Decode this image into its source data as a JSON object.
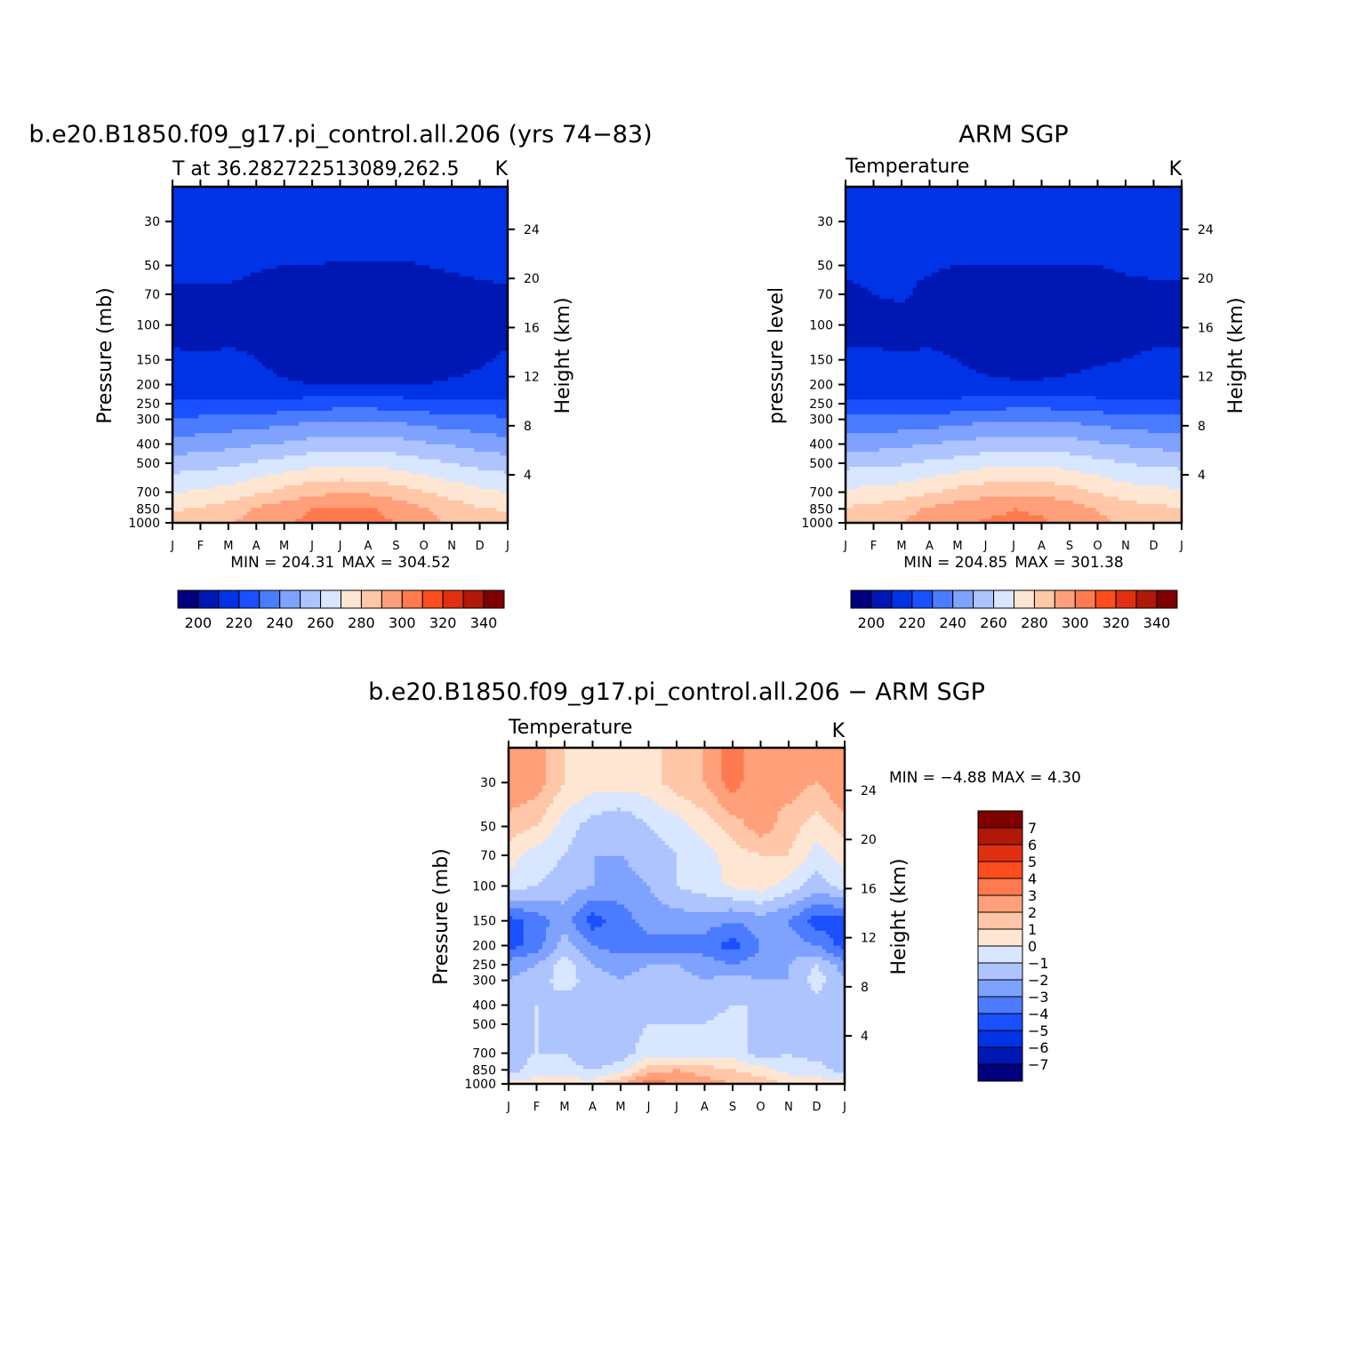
{
  "chart_data": [
    {
      "type": "heatmap",
      "title": "b.e20.B1850.f09_g17.pi_control.all.206 (yrs 74-83)",
      "subtitle_left": "T at 36.282722513089,262.5",
      "units": "K",
      "ylabel": "Pressure (mb)",
      "ylabel_right": "Height (km)",
      "x_ticklabels": [
        "J",
        "F",
        "M",
        "A",
        "M",
        "J",
        "J",
        "A",
        "S",
        "O",
        "N",
        "D",
        "J"
      ],
      "y_levels": [
        30,
        50,
        70,
        100,
        150,
        200,
        250,
        300,
        400,
        500,
        700,
        850,
        1000
      ],
      "height_ticks": [
        4,
        8,
        12,
        16,
        20,
        24
      ],
      "ylim": [
        1000,
        20
      ],
      "min_label": "MIN = 204.31",
      "max_label": "MAX = 304.52",
      "colorbar_ticks": [
        "200",
        "220",
        "240",
        "260",
        "280",
        "300",
        "320",
        "340"
      ],
      "values": [
        [
          214,
          215,
          216,
          217,
          218,
          219,
          220,
          219,
          218,
          217,
          216,
          215,
          214
        ],
        [
          212,
          212,
          212,
          211,
          210,
          210,
          209,
          209,
          209,
          210,
          211,
          212,
          212
        ],
        [
          209,
          209,
          209,
          207,
          206,
          205,
          205,
          205,
          205,
          206,
          207,
          208,
          209
        ],
        [
          208,
          207,
          208,
          209,
          207,
          206,
          206,
          206,
          205,
          205,
          206,
          207,
          208
        ],
        [
          211,
          211,
          211,
          210,
          207,
          206,
          206,
          206,
          206,
          206,
          207,
          209,
          211
        ],
        [
          214,
          214,
          214,
          213,
          211,
          210,
          210,
          210,
          210,
          210,
          211,
          212,
          214
        ],
        [
          222,
          222,
          222,
          222,
          223,
          225,
          226,
          226,
          225,
          223,
          222,
          222,
          222
        ],
        [
          231,
          232,
          233,
          234,
          236,
          238,
          239,
          239,
          238,
          236,
          234,
          233,
          231
        ],
        [
          244,
          245,
          247,
          249,
          251,
          254,
          255,
          255,
          254,
          251,
          249,
          246,
          244
        ],
        [
          255,
          256,
          258,
          261,
          264,
          267,
          268,
          268,
          266,
          263,
          260,
          257,
          255
        ],
        [
          270,
          271,
          274,
          278,
          283,
          287,
          289,
          288,
          285,
          280,
          276,
          272,
          270
        ],
        [
          279,
          281,
          285,
          291,
          296,
          300,
          302,
          301,
          297,
          291,
          285,
          281,
          279
        ],
        [
          283,
          285,
          289,
          294,
          299,
          302,
          304,
          303,
          300,
          294,
          288,
          284,
          283
        ]
      ]
    },
    {
      "type": "heatmap",
      "title": "ARM SGP",
      "subtitle_left": "Temperature",
      "units": "K",
      "ylabel": "pressure level",
      "ylabel_right": "Height (km)",
      "x_ticklabels": [
        "J",
        "F",
        "M",
        "A",
        "M",
        "J",
        "J",
        "A",
        "S",
        "O",
        "N",
        "D",
        "J"
      ],
      "y_levels": [
        30,
        50,
        70,
        100,
        150,
        200,
        250,
        300,
        400,
        500,
        700,
        850,
        1000
      ],
      "height_ticks": [
        4,
        8,
        12,
        16,
        20,
        24
      ],
      "ylim": [
        1000,
        20
      ],
      "min_label": "MIN = 204.85",
      "max_label": "MAX = 301.38",
      "colorbar_ticks": [
        "200",
        "220",
        "240",
        "260",
        "280",
        "300",
        "320",
        "340"
      ],
      "values": [
        [
          213,
          213,
          214,
          215,
          217,
          218,
          220,
          218,
          217,
          215,
          214,
          213,
          213
        ],
        [
          211,
          211,
          211,
          211,
          210,
          210,
          210,
          210,
          210,
          210,
          211,
          211,
          211
        ],
        [
          209,
          210,
          211,
          208,
          206,
          205,
          205,
          205,
          205,
          206,
          208,
          209,
          209
        ],
        [
          208,
          208,
          207,
          208,
          208,
          206,
          205,
          205,
          206,
          207,
          208,
          208,
          208
        ],
        [
          211,
          211,
          211,
          211,
          210,
          207,
          206,
          206,
          207,
          209,
          210,
          211,
          211
        ],
        [
          214,
          214,
          214,
          214,
          213,
          212,
          211,
          211,
          212,
          213,
          214,
          214,
          214
        ],
        [
          222,
          222,
          222,
          222,
          223,
          225,
          226,
          226,
          225,
          223,
          222,
          222,
          222
        ],
        [
          232,
          232,
          233,
          234,
          236,
          238,
          239,
          239,
          238,
          236,
          234,
          233,
          232
        ],
        [
          246,
          246,
          248,
          250,
          252,
          254,
          255,
          255,
          254,
          251,
          249,
          247,
          246
        ],
        [
          257,
          258,
          259,
          262,
          264,
          267,
          268,
          268,
          266,
          263,
          260,
          258,
          257
        ],
        [
          272,
          273,
          275,
          279,
          283,
          286,
          288,
          287,
          284,
          279,
          275,
          273,
          272
        ],
        [
          281,
          283,
          287,
          291,
          295,
          298,
          300,
          299,
          295,
          289,
          285,
          282,
          281
        ],
        [
          285,
          287,
          290,
          294,
          298,
          301,
          301,
          301,
          298,
          293,
          288,
          286,
          285
        ]
      ]
    },
    {
      "type": "heatmap",
      "title": "b.e20.B1850.f09_g17.pi_control.all.206 - ARM SGP",
      "subtitle_left": "Temperature",
      "units": "K",
      "ylabel": "Pressure (mb)",
      "ylabel_right": "Height (km)",
      "x_ticklabels": [
        "J",
        "F",
        "M",
        "A",
        "M",
        "J",
        "J",
        "A",
        "S",
        "O",
        "N",
        "D",
        "J"
      ],
      "y_levels": [
        30,
        50,
        70,
        100,
        150,
        200,
        250,
        300,
        400,
        500,
        700,
        850,
        1000
      ],
      "height_ticks": [
        4,
        8,
        12,
        16,
        20,
        24
      ],
      "ylim": [
        1000,
        20
      ],
      "min_label": "MIN =   -4.88 MAX =     4.30",
      "colorbar_ticks": [
        "7",
        "6",
        "5",
        "4",
        "3",
        "2",
        "1",
        "0",
        "-1",
        "-2",
        "-3",
        "-4",
        "-5",
        "-6",
        "-7"
      ],
      "values": [
        [
          3.0,
          2.5,
          1.0,
          0.5,
          0.5,
          0.5,
          1.5,
          2.0,
          3.5,
          2.0,
          2.5,
          2.0,
          3.0
        ],
        [
          1.5,
          1.0,
          -0.5,
          -1.5,
          -2.0,
          -1.0,
          -0.5,
          0.5,
          1.5,
          2.5,
          1.5,
          0.5,
          1.5
        ],
        [
          0.5,
          -0.5,
          -1.0,
          -2.0,
          -2.0,
          -1.5,
          -1.0,
          -0.5,
          0.5,
          1.0,
          1.0,
          -0.5,
          0.5
        ],
        [
          -0.5,
          -1.0,
          -1.5,
          -2.0,
          -2.5,
          -2.0,
          -1.0,
          -0.5,
          0.2,
          0.5,
          -0.5,
          -1.5,
          -0.5
        ],
        [
          -4.5,
          -3.5,
          -2.5,
          -4.5,
          -3.5,
          -2.5,
          -2.5,
          -2.5,
          -3.0,
          -2.5,
          -3.0,
          -4.5,
          -4.5
        ],
        [
          -4.5,
          -3.5,
          -1.5,
          -3.0,
          -3.5,
          -3.5,
          -3.5,
          -3.5,
          -4.5,
          -3.0,
          -2.5,
          -3.0,
          -4.5
        ],
        [
          -2.5,
          -2.0,
          -0.5,
          -2.0,
          -2.5,
          -2.0,
          -2.0,
          -2.5,
          -3.0,
          -2.5,
          -2.0,
          -1.0,
          -2.5
        ],
        [
          -2.0,
          -1.5,
          -0.5,
          -1.5,
          -2.0,
          -1.5,
          -1.5,
          -2.0,
          -1.5,
          -2.0,
          -2.0,
          -0.5,
          -2.0
        ],
        [
          -1.5,
          -1.0,
          -1.5,
          -1.5,
          -1.5,
          -1.5,
          -1.5,
          -1.5,
          -1.0,
          -1.0,
          -1.5,
          -1.5,
          -1.5
        ],
        [
          -1.5,
          -1.0,
          -1.5,
          -1.5,
          -1.5,
          -1.0,
          -1.0,
          -1.0,
          -0.5,
          -1.5,
          -1.5,
          -1.5,
          -1.5
        ],
        [
          -1.5,
          -1.0,
          -1.0,
          -2.0,
          -1.5,
          -0.5,
          -0.5,
          -0.5,
          -0.5,
          -1.5,
          -1.0,
          -1.5,
          -1.5
        ],
        [
          -1.5,
          -0.5,
          -0.5,
          -1.0,
          -0.5,
          1.5,
          2.0,
          1.5,
          1.0,
          0.5,
          -0.5,
          -0.5,
          -1.5
        ],
        [
          0.5,
          0.5,
          0.5,
          0.5,
          2.0,
          3.5,
          3.0,
          2.5,
          2.0,
          1.5,
          1.0,
          0.5,
          0.5
        ]
      ]
    }
  ],
  "colors": {
    "abs_palette": [
      "#00007f",
      "#0018b3",
      "#0032e6",
      "#1a50ff",
      "#4b7cff",
      "#7fa2ff",
      "#adc4ff",
      "#d8e6ff",
      "#ffe6d3",
      "#ffc6a8",
      "#ffa07a",
      "#ff7a4e",
      "#ff4c1c",
      "#e03010",
      "#b01808",
      "#7f0000"
    ],
    "diff_palette": [
      "#00007f",
      "#0018b3",
      "#0032e6",
      "#1a50ff",
      "#4b7cff",
      "#7fa2ff",
      "#adc4ff",
      "#d8e6ff",
      "#ffe6d3",
      "#ffc6a8",
      "#ffa07a",
      "#ff7a4e",
      "#ff4c1c",
      "#e03010",
      "#b01808",
      "#7f0000"
    ]
  }
}
